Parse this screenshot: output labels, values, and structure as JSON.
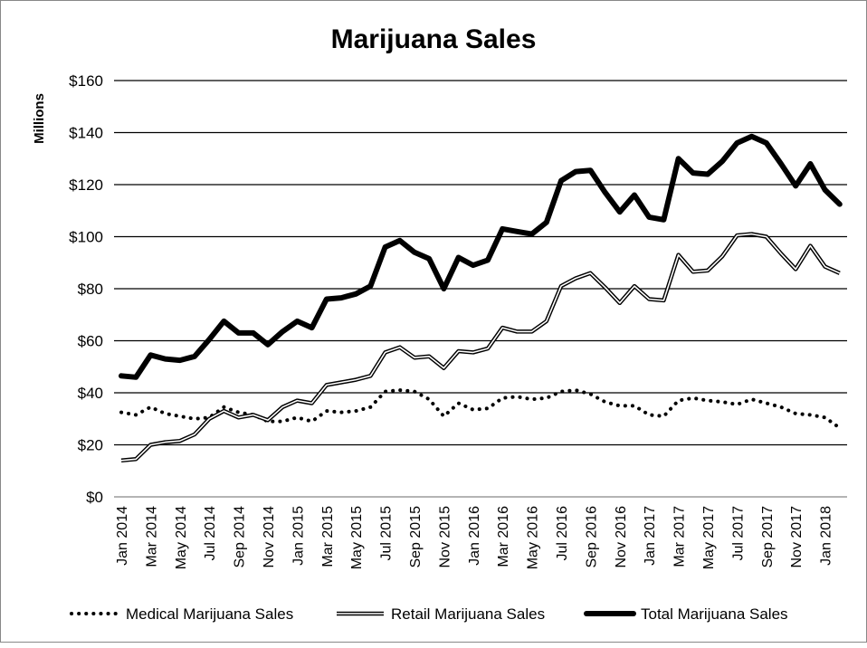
{
  "chart_data": {
    "type": "line",
    "title": "Marijuana Sales",
    "xlabel": "",
    "ylabel": "Millions",
    "ylim": [
      0,
      160
    ],
    "yticks": [
      0,
      20,
      40,
      60,
      80,
      100,
      120,
      140,
      160
    ],
    "ytick_labels": [
      "$0",
      "$20",
      "$40",
      "$60",
      "$80",
      "$100",
      "$120",
      "$140",
      "$160"
    ],
    "grid": true,
    "legend_position": "bottom",
    "x": [
      "Jan 2014",
      "Feb 2014",
      "Mar 2014",
      "Apr 2014",
      "May 2014",
      "Jun 2014",
      "Jul 2014",
      "Aug 2014",
      "Sep 2014",
      "Oct 2014",
      "Nov 2014",
      "Dec 2014",
      "Jan 2015",
      "Feb 2015",
      "Mar 2015",
      "Apr 2015",
      "May 2015",
      "Jun 2015",
      "Jul 2015",
      "Aug 2015",
      "Sep 2015",
      "Oct 2015",
      "Nov 2015",
      "Dec 2015",
      "Jan 2016",
      "Feb 2016",
      "Mar 2016",
      "Apr 2016",
      "May 2016",
      "Jun 2016",
      "Jul 2016",
      "Aug 2016",
      "Sep 2016",
      "Oct 2016",
      "Nov 2016",
      "Dec 2016",
      "Jan 2017",
      "Feb 2017",
      "Mar 2017",
      "Apr 2017",
      "May 2017",
      "Jun 2017",
      "Jul 2017",
      "Aug 2017",
      "Sep 2017",
      "Oct 2017",
      "Nov 2017",
      "Dec 2017",
      "Jan 2018",
      "Feb 2018"
    ],
    "xtick_labels": [
      "Jan 2014",
      "Mar 2014",
      "May 2014",
      "Jul 2014",
      "Sep 2014",
      "Nov 2014",
      "Jan 2015",
      "Mar 2015",
      "May 2015",
      "Jul 2015",
      "Sep 2015",
      "Nov 2015",
      "Jan 2016",
      "Mar 2016",
      "May 2016",
      "Jul 2016",
      "Sep 2016",
      "Nov 2016",
      "Jan 2017",
      "Mar 2017",
      "May 2017",
      "Jul 2017",
      "Sep 2017",
      "Nov 2017",
      "Jan 2018"
    ],
    "series": [
      {
        "name": "Medical Marijuana Sales",
        "style": "dotted",
        "values": [
          32.5,
          31.5,
          34.5,
          32,
          31,
          30,
          30.5,
          34.5,
          32.5,
          31.5,
          29,
          29,
          30.5,
          29,
          33,
          32.5,
          33,
          34.5,
          40.5,
          41,
          40.5,
          37.5,
          31,
          36,
          33.5,
          34,
          38,
          38.5,
          37.5,
          38,
          40.5,
          41,
          39.5,
          36.5,
          35,
          35,
          31.5,
          31,
          37,
          38,
          37,
          36.5,
          35.5,
          37.5,
          36,
          34.5,
          32,
          31.5,
          30.5,
          26.5
        ]
      },
      {
        "name": "Retail Marijuana Sales",
        "style": "double",
        "values": [
          14,
          14.5,
          20,
          21,
          21.5,
          24,
          30,
          33,
          30.5,
          31.5,
          29.5,
          34.5,
          37,
          36,
          43,
          44,
          45,
          46.5,
          55.5,
          57.5,
          53.5,
          54,
          49.5,
          56,
          55.5,
          57,
          65,
          63.5,
          63.5,
          67.5,
          81,
          84,
          86,
          80.5,
          74.5,
          81,
          76,
          75.5,
          93,
          86.5,
          87,
          92.5,
          100.5,
          101,
          100,
          93.5,
          87.5,
          96.5,
          88.5,
          86
        ]
      },
      {
        "name": "Total Marijuana Sales",
        "style": "thick",
        "values": [
          46.5,
          46,
          54.5,
          53,
          52.5,
          54,
          60.5,
          67.5,
          63,
          63,
          58.5,
          63.5,
          67.5,
          65,
          76,
          76.5,
          78,
          81,
          96,
          98.5,
          94,
          91.5,
          80,
          92,
          89,
          91,
          103,
          102,
          101,
          105.5,
          121.5,
          125,
          125.5,
          117,
          109.5,
          116,
          107.5,
          106.5,
          130,
          124.5,
          124,
          129,
          136,
          138.5,
          136,
          128,
          119.5,
          128,
          118,
          112.5
        ]
      }
    ]
  }
}
